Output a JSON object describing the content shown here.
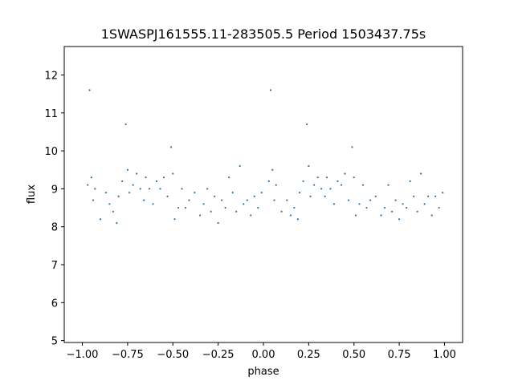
{
  "chart_data": {
    "type": "scatter",
    "title": "1SWASPJ161555.11-283505.5 Period 1503437.75s",
    "xlabel": "phase",
    "ylabel": "flux",
    "xlim": [
      -1.1,
      1.1
    ],
    "ylim": [
      4.95,
      12.75
    ],
    "xticks": [
      -1.0,
      -0.75,
      -0.5,
      -0.25,
      0.0,
      0.25,
      0.5,
      0.75,
      1.0
    ],
    "xtick_labels": [
      "−1.00",
      "−0.75",
      "−0.50",
      "−0.25",
      "0.00",
      "0.25",
      "0.50",
      "0.75",
      "1.00"
    ],
    "yticks": [
      5,
      6,
      7,
      8,
      9,
      10,
      11,
      12
    ],
    "ytick_labels": [
      "5",
      "6",
      "7",
      "8",
      "9",
      "10",
      "11",
      "12"
    ],
    "marker_color": "#1f77b4",
    "grid": false,
    "series": [
      {
        "x": [
          -0.97,
          -0.96,
          -0.95,
          -0.94,
          -0.93,
          -0.9,
          -0.87,
          -0.85,
          -0.83,
          -0.81,
          -0.8,
          -0.78,
          -0.76,
          -0.75,
          -0.74,
          -0.72,
          -0.7,
          -0.68,
          -0.66,
          -0.65,
          -0.63,
          -0.61,
          -0.59,
          -0.57,
          -0.55,
          -0.53,
          -0.51,
          -0.5,
          -0.49,
          -0.47,
          -0.45,
          -0.43,
          -0.41,
          -0.38,
          -0.35,
          -0.33,
          -0.31,
          -0.29,
          -0.27,
          -0.25,
          -0.23,
          -0.21,
          -0.19,
          -0.17,
          -0.15,
          -0.13,
          -0.11,
          -0.09,
          -0.07,
          -0.05,
          -0.03,
          -0.01,
          0.03,
          0.04,
          0.05,
          0.06,
          0.07,
          0.1,
          0.13,
          0.15,
          0.17,
          0.19,
          0.2,
          0.22,
          0.24,
          0.25,
          0.26,
          0.28,
          0.3,
          0.32,
          0.34,
          0.35,
          0.37,
          0.39,
          0.41,
          0.43,
          0.45,
          0.47,
          0.49,
          0.5,
          0.51,
          0.53,
          0.55,
          0.57,
          0.59,
          0.62,
          0.65,
          0.67,
          0.69,
          0.71,
          0.73,
          0.75,
          0.77,
          0.79,
          0.81,
          0.83,
          0.85,
          0.87,
          0.89,
          0.91,
          0.93,
          0.95,
          0.97,
          0.99
        ],
        "y": [
          9.1,
          11.6,
          9.3,
          8.7,
          9.0,
          8.2,
          8.9,
          8.6,
          8.4,
          8.1,
          8.8,
          9.2,
          10.7,
          9.5,
          8.9,
          9.1,
          9.4,
          9.0,
          8.7,
          9.3,
          9.0,
          8.6,
          9.2,
          9.0,
          9.3,
          8.8,
          10.1,
          9.4,
          8.2,
          8.5,
          9.0,
          8.5,
          8.7,
          8.9,
          8.3,
          8.6,
          9.0,
          8.4,
          8.8,
          8.1,
          8.7,
          8.5,
          9.3,
          8.9,
          8.4,
          9.6,
          8.6,
          8.7,
          8.3,
          8.8,
          8.5,
          8.9,
          9.2,
          11.6,
          9.5,
          8.7,
          9.1,
          8.4,
          8.7,
          8.3,
          8.5,
          8.2,
          8.9,
          9.2,
          10.7,
          9.6,
          8.8,
          9.1,
          9.3,
          9.0,
          8.8,
          9.3,
          9.0,
          8.6,
          9.2,
          9.1,
          9.4,
          8.7,
          10.1,
          9.3,
          8.3,
          8.6,
          9.1,
          8.5,
          8.7,
          8.8,
          8.3,
          8.5,
          9.1,
          8.4,
          8.7,
          8.2,
          8.6,
          8.5,
          9.2,
          8.8,
          8.4,
          9.4,
          8.6,
          8.8,
          8.3,
          8.8,
          8.5,
          8.9
        ]
      }
    ]
  }
}
